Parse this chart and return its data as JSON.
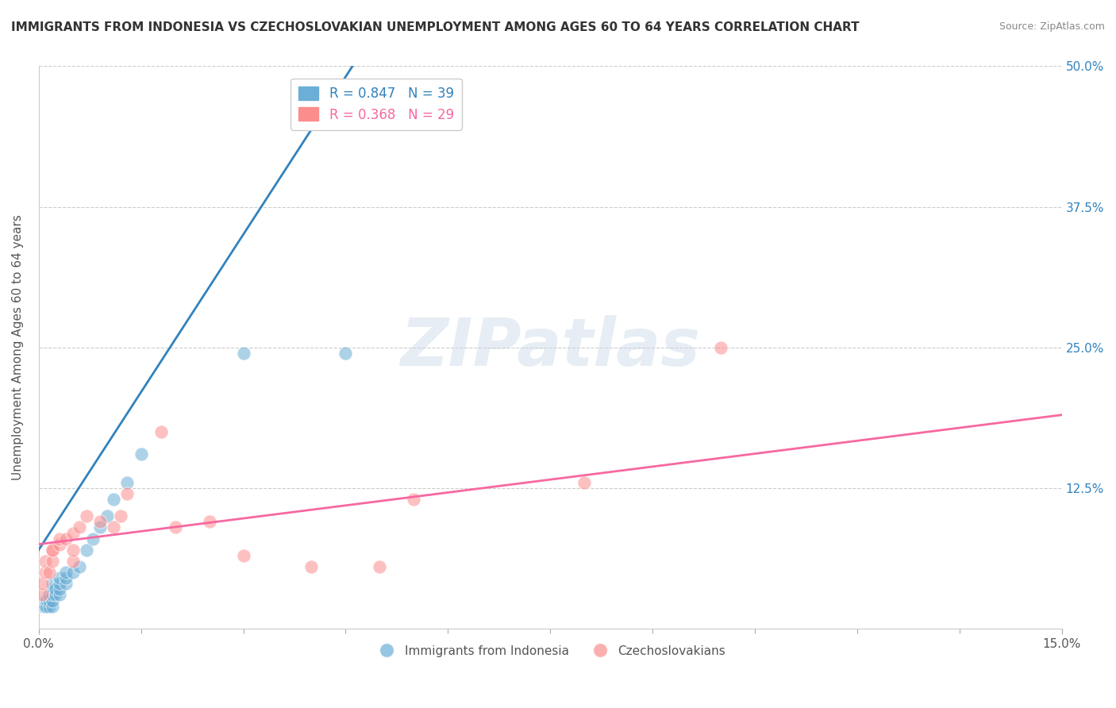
{
  "title": "IMMIGRANTS FROM INDONESIA VS CZECHOSLOVAKIAN UNEMPLOYMENT AMONG AGES 60 TO 64 YEARS CORRELATION CHART",
  "source": "Source: ZipAtlas.com",
  "ylabel": "Unemployment Among Ages 60 to 64 years",
  "xlim": [
    0.0,
    0.15
  ],
  "ylim": [
    0.0,
    0.5
  ],
  "xticks": [
    0.0,
    0.15
  ],
  "xticklabels": [
    "0.0%",
    "15.0%"
  ],
  "yticks": [
    0.0,
    0.125,
    0.25,
    0.375,
    0.5
  ],
  "yticklabels_right": [
    "",
    "12.5%",
    "25.0%",
    "37.5%",
    "50.0%"
  ],
  "blue_R": 0.847,
  "blue_N": 39,
  "pink_R": 0.368,
  "pink_N": 29,
  "blue_color": "#6baed6",
  "pink_color": "#fc8d8d",
  "blue_line_color": "#3182bd",
  "pink_line_color": "#f768a1",
  "legend_blue_label": "Immigrants from Indonesia",
  "legend_pink_label": "Czechoslovakians",
  "watermark_text": "ZIPatlas",
  "blue_scatter_x": [
    0.0005,
    0.0005,
    0.0005,
    0.0007,
    0.0007,
    0.001,
    0.001,
    0.001,
    0.001,
    0.0012,
    0.0012,
    0.0015,
    0.0015,
    0.0015,
    0.002,
    0.002,
    0.002,
    0.002,
    0.002,
    0.0025,
    0.0025,
    0.003,
    0.003,
    0.003,
    0.003,
    0.004,
    0.004,
    0.004,
    0.005,
    0.006,
    0.007,
    0.008,
    0.009,
    0.01,
    0.011,
    0.013,
    0.015,
    0.03,
    0.045
  ],
  "blue_scatter_y": [
    0.02,
    0.02,
    0.02,
    0.02,
    0.02,
    0.02,
    0.02,
    0.025,
    0.02,
    0.02,
    0.025,
    0.02,
    0.025,
    0.03,
    0.02,
    0.025,
    0.03,
    0.035,
    0.04,
    0.03,
    0.035,
    0.03,
    0.035,
    0.04,
    0.045,
    0.04,
    0.045,
    0.05,
    0.05,
    0.055,
    0.07,
    0.08,
    0.09,
    0.1,
    0.115,
    0.13,
    0.155,
    0.245,
    0.245
  ],
  "pink_scatter_x": [
    0.0005,
    0.0005,
    0.001,
    0.001,
    0.0015,
    0.002,
    0.002,
    0.002,
    0.003,
    0.003,
    0.004,
    0.005,
    0.005,
    0.005,
    0.006,
    0.007,
    0.009,
    0.011,
    0.012,
    0.013,
    0.018,
    0.02,
    0.025,
    0.03,
    0.04,
    0.05,
    0.055,
    0.08,
    0.1
  ],
  "pink_scatter_y": [
    0.03,
    0.04,
    0.05,
    0.06,
    0.05,
    0.06,
    0.07,
    0.07,
    0.075,
    0.08,
    0.08,
    0.06,
    0.07,
    0.085,
    0.09,
    0.1,
    0.095,
    0.09,
    0.1,
    0.12,
    0.175,
    0.09,
    0.095,
    0.065,
    0.055,
    0.055,
    0.115,
    0.13,
    0.25
  ],
  "blue_trendline_x": [
    0.0,
    0.046
  ],
  "blue_trendline_y": [
    0.07,
    0.5
  ],
  "pink_trendline_x": [
    0.0,
    0.15
  ],
  "pink_trendline_y": [
    0.075,
    0.19
  ],
  "title_fontsize": 11,
  "axis_label_fontsize": 11,
  "tick_fontsize": 11,
  "legend_fontsize": 12,
  "background_color": "#ffffff",
  "grid_color": "#cccccc",
  "ytick_color": "#3182bd"
}
